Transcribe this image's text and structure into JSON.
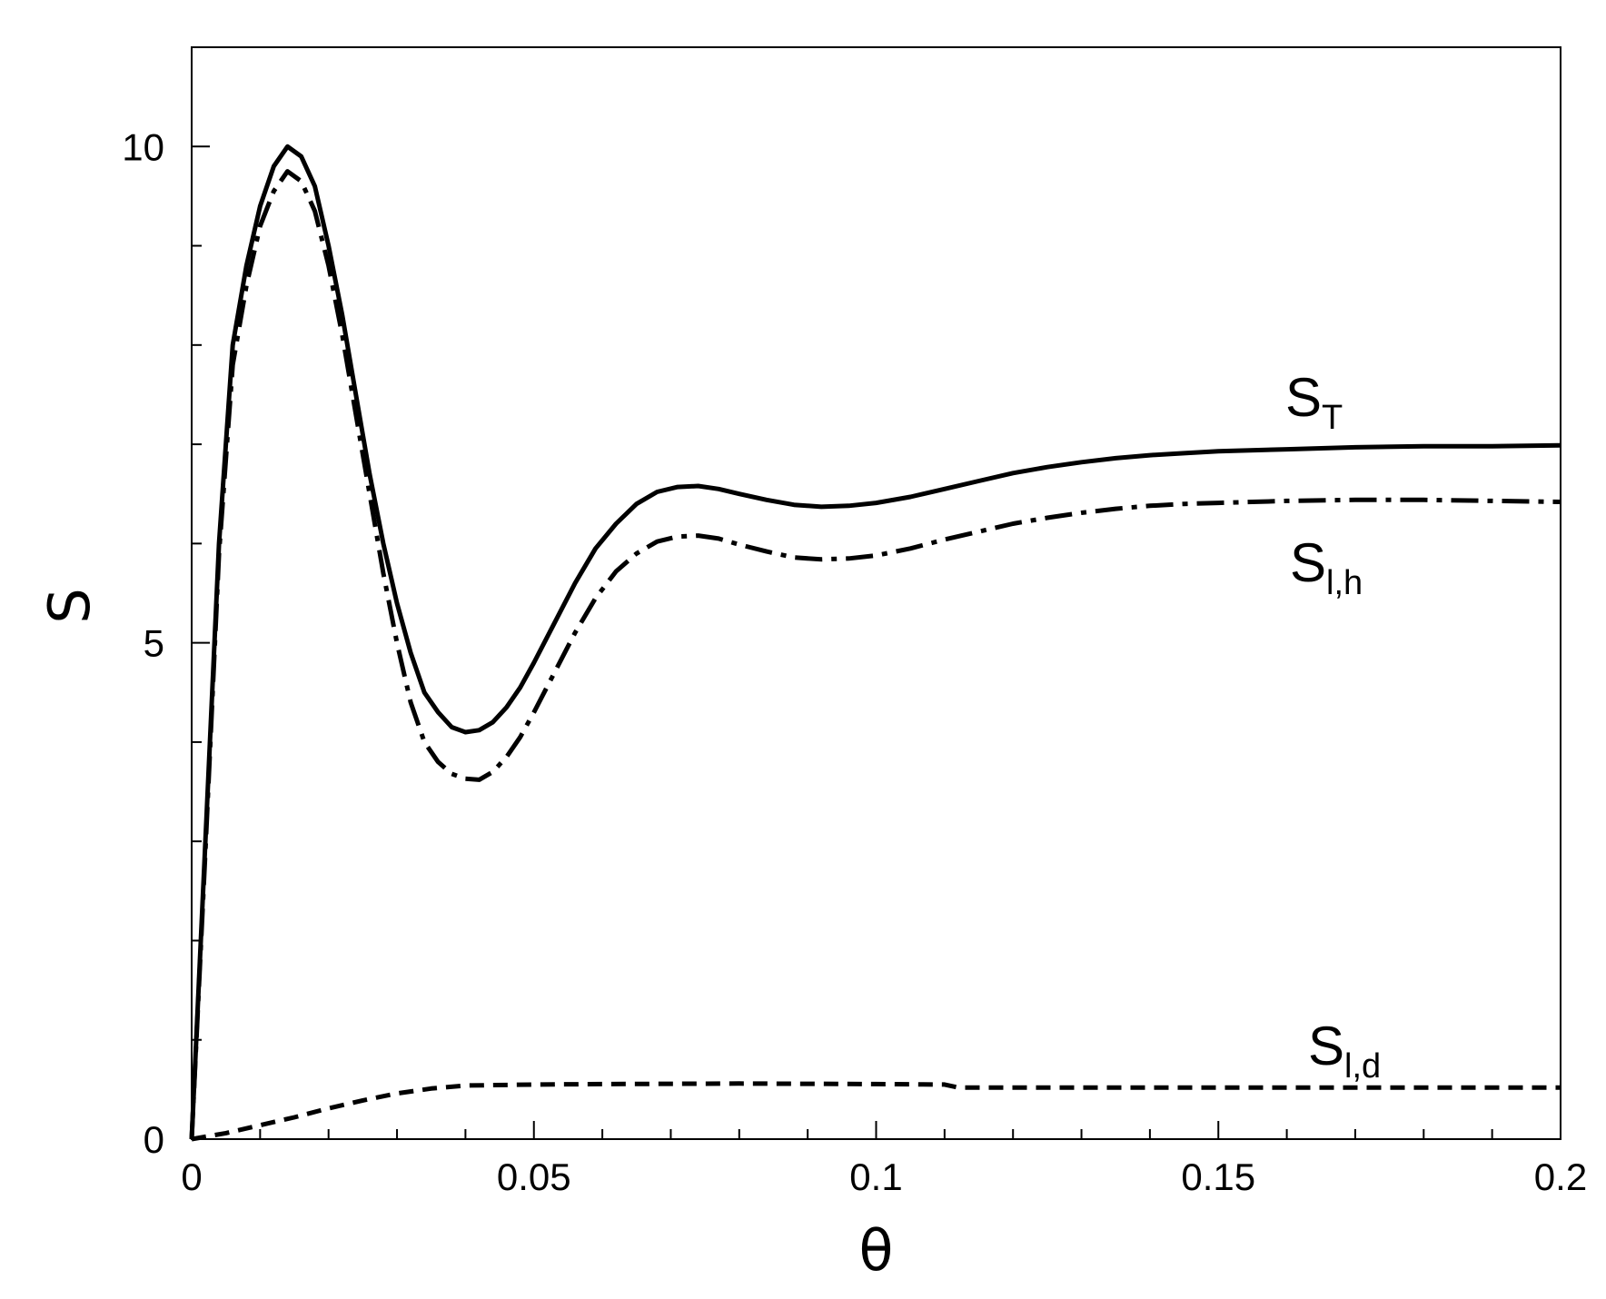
{
  "chart_data": {
    "type": "line",
    "title": "",
    "xlabel": "θ",
    "ylabel": "S",
    "xlim": [
      0,
      0.2
    ],
    "ylim": [
      0,
      11
    ],
    "x_ticks": [
      0,
      0.05,
      0.1,
      0.15,
      0.2
    ],
    "x_tick_labels": [
      "0",
      "0.05",
      "0.1",
      "0.15",
      "0.2"
    ],
    "x_minor_step": 0.01,
    "y_ticks": [
      0,
      5,
      10
    ],
    "y_tick_labels": [
      "0",
      "5",
      "10"
    ],
    "y_minor_step": 1,
    "grid": false,
    "legend": "none",
    "series": [
      {
        "name": "ST",
        "label_main": "S",
        "label_sub": "T",
        "line_style": "solid",
        "color": "#000000",
        "points": [
          [
            0,
            0
          ],
          [
            0.002,
            3.0
          ],
          [
            0.004,
            6.0
          ],
          [
            0.006,
            8.0
          ],
          [
            0.008,
            8.8
          ],
          [
            0.01,
            9.4
          ],
          [
            0.012,
            9.8
          ],
          [
            0.014,
            10.0
          ],
          [
            0.016,
            9.9
          ],
          [
            0.018,
            9.6
          ],
          [
            0.02,
            9.0
          ],
          [
            0.022,
            8.3
          ],
          [
            0.024,
            7.5
          ],
          [
            0.026,
            6.7
          ],
          [
            0.028,
            6.0
          ],
          [
            0.03,
            5.4
          ],
          [
            0.032,
            4.9
          ],
          [
            0.034,
            4.5
          ],
          [
            0.036,
            4.3
          ],
          [
            0.038,
            4.15
          ],
          [
            0.04,
            4.1
          ],
          [
            0.042,
            4.12
          ],
          [
            0.044,
            4.2
          ],
          [
            0.046,
            4.35
          ],
          [
            0.048,
            4.55
          ],
          [
            0.05,
            4.8
          ],
          [
            0.053,
            5.2
          ],
          [
            0.056,
            5.6
          ],
          [
            0.059,
            5.95
          ],
          [
            0.062,
            6.2
          ],
          [
            0.065,
            6.4
          ],
          [
            0.068,
            6.52
          ],
          [
            0.071,
            6.57
          ],
          [
            0.074,
            6.58
          ],
          [
            0.077,
            6.55
          ],
          [
            0.08,
            6.5
          ],
          [
            0.084,
            6.44
          ],
          [
            0.088,
            6.39
          ],
          [
            0.092,
            6.37
          ],
          [
            0.096,
            6.38
          ],
          [
            0.1,
            6.41
          ],
          [
            0.105,
            6.47
          ],
          [
            0.11,
            6.55
          ],
          [
            0.115,
            6.63
          ],
          [
            0.12,
            6.71
          ],
          [
            0.125,
            6.77
          ],
          [
            0.13,
            6.82
          ],
          [
            0.135,
            6.86
          ],
          [
            0.14,
            6.89
          ],
          [
            0.145,
            6.91
          ],
          [
            0.15,
            6.93
          ],
          [
            0.16,
            6.95
          ],
          [
            0.17,
            6.97
          ],
          [
            0.18,
            6.98
          ],
          [
            0.19,
            6.98
          ],
          [
            0.2,
            6.99
          ]
        ]
      },
      {
        "name": "Sl,h",
        "label_main": "S",
        "label_sub": "l,h",
        "line_style": "dash-dot",
        "color": "#000000",
        "points": [
          [
            0,
            0
          ],
          [
            0.002,
            2.9
          ],
          [
            0.004,
            5.9
          ],
          [
            0.006,
            7.8
          ],
          [
            0.008,
            8.6
          ],
          [
            0.01,
            9.2
          ],
          [
            0.012,
            9.55
          ],
          [
            0.014,
            9.75
          ],
          [
            0.016,
            9.65
          ],
          [
            0.018,
            9.35
          ],
          [
            0.02,
            8.8
          ],
          [
            0.022,
            8.1
          ],
          [
            0.024,
            7.3
          ],
          [
            0.026,
            6.5
          ],
          [
            0.028,
            5.7
          ],
          [
            0.03,
            5.0
          ],
          [
            0.032,
            4.4
          ],
          [
            0.034,
            4.0
          ],
          [
            0.036,
            3.8
          ],
          [
            0.038,
            3.68
          ],
          [
            0.04,
            3.63
          ],
          [
            0.042,
            3.62
          ],
          [
            0.044,
            3.7
          ],
          [
            0.046,
            3.85
          ],
          [
            0.048,
            4.05
          ],
          [
            0.05,
            4.3
          ],
          [
            0.053,
            4.7
          ],
          [
            0.056,
            5.1
          ],
          [
            0.059,
            5.45
          ],
          [
            0.062,
            5.72
          ],
          [
            0.065,
            5.9
          ],
          [
            0.068,
            6.02
          ],
          [
            0.071,
            6.07
          ],
          [
            0.074,
            6.08
          ],
          [
            0.077,
            6.05
          ],
          [
            0.08,
            5.99
          ],
          [
            0.084,
            5.92
          ],
          [
            0.088,
            5.86
          ],
          [
            0.092,
            5.84
          ],
          [
            0.096,
            5.85
          ],
          [
            0.1,
            5.88
          ],
          [
            0.105,
            5.95
          ],
          [
            0.11,
            6.04
          ],
          [
            0.115,
            6.12
          ],
          [
            0.12,
            6.2
          ],
          [
            0.125,
            6.26
          ],
          [
            0.13,
            6.31
          ],
          [
            0.135,
            6.35
          ],
          [
            0.14,
            6.38
          ],
          [
            0.145,
            6.4
          ],
          [
            0.15,
            6.41
          ],
          [
            0.16,
            6.43
          ],
          [
            0.17,
            6.44
          ],
          [
            0.18,
            6.44
          ],
          [
            0.19,
            6.43
          ],
          [
            0.2,
            6.42
          ]
        ]
      },
      {
        "name": "Sl,d",
        "label_main": "S",
        "label_sub": "l,d",
        "line_style": "dashed",
        "color": "#000000",
        "points": [
          [
            0,
            0
          ],
          [
            0.005,
            0.06
          ],
          [
            0.01,
            0.14
          ],
          [
            0.015,
            0.22
          ],
          [
            0.02,
            0.31
          ],
          [
            0.025,
            0.39
          ],
          [
            0.03,
            0.46
          ],
          [
            0.035,
            0.51
          ],
          [
            0.04,
            0.54
          ],
          [
            0.05,
            0.55
          ],
          [
            0.06,
            0.555
          ],
          [
            0.08,
            0.56
          ],
          [
            0.1,
            0.555
          ],
          [
            0.11,
            0.55
          ],
          [
            0.112,
            0.52
          ],
          [
            0.13,
            0.52
          ],
          [
            0.15,
            0.52
          ],
          [
            0.17,
            0.52
          ],
          [
            0.2,
            0.52
          ]
        ]
      }
    ]
  }
}
